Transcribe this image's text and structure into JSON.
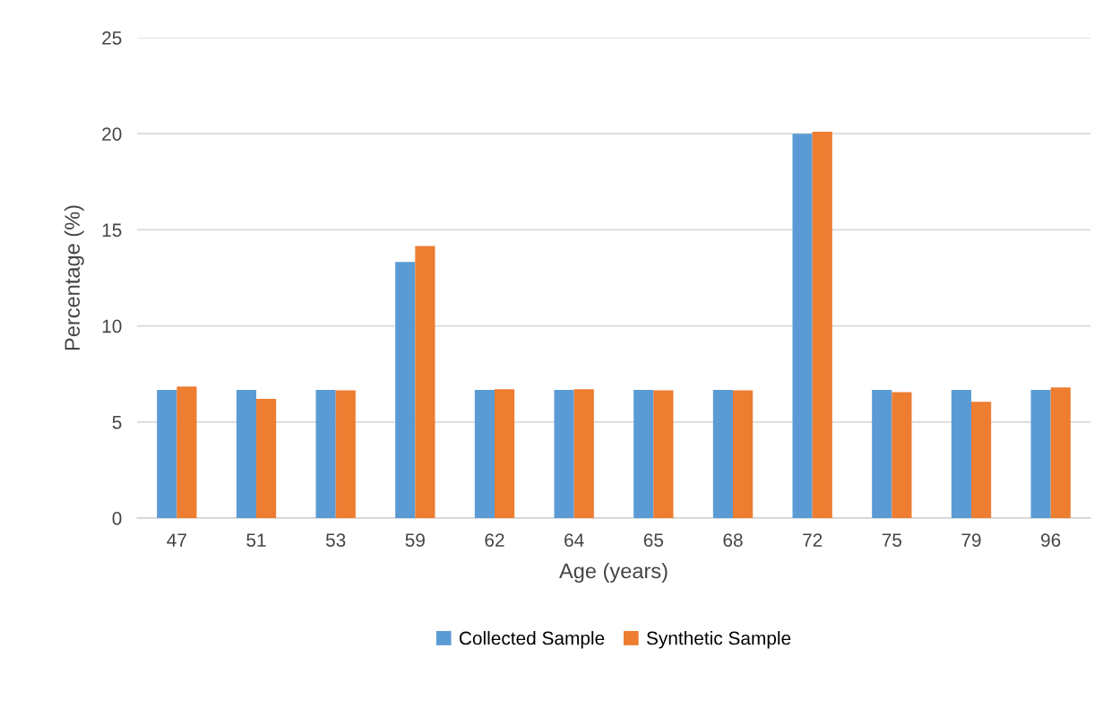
{
  "chart_data": {
    "type": "bar",
    "xlabel": "Age (years)",
    "ylabel": "Percentage (%)",
    "categories": [
      "47",
      "51",
      "53",
      "59",
      "62",
      "64",
      "65",
      "68",
      "72",
      "75",
      "79",
      "96"
    ],
    "series": [
      {
        "name": "Collected Sample",
        "color": "#5b9bd5",
        "values": [
          6.67,
          6.67,
          6.67,
          13.33,
          6.67,
          6.67,
          6.67,
          6.67,
          20.0,
          6.67,
          6.67,
          6.67
        ]
      },
      {
        "name": "Synthetic Sample",
        "color": "#ed7d31",
        "values": [
          6.85,
          6.2,
          6.65,
          14.15,
          6.7,
          6.7,
          6.65,
          6.65,
          20.1,
          6.55,
          6.05,
          6.8
        ]
      }
    ],
    "ylim": [
      0,
      25
    ],
    "yticks": [
      0,
      5,
      10,
      15,
      20,
      25
    ],
    "grid": "y",
    "legend": "bottom"
  }
}
